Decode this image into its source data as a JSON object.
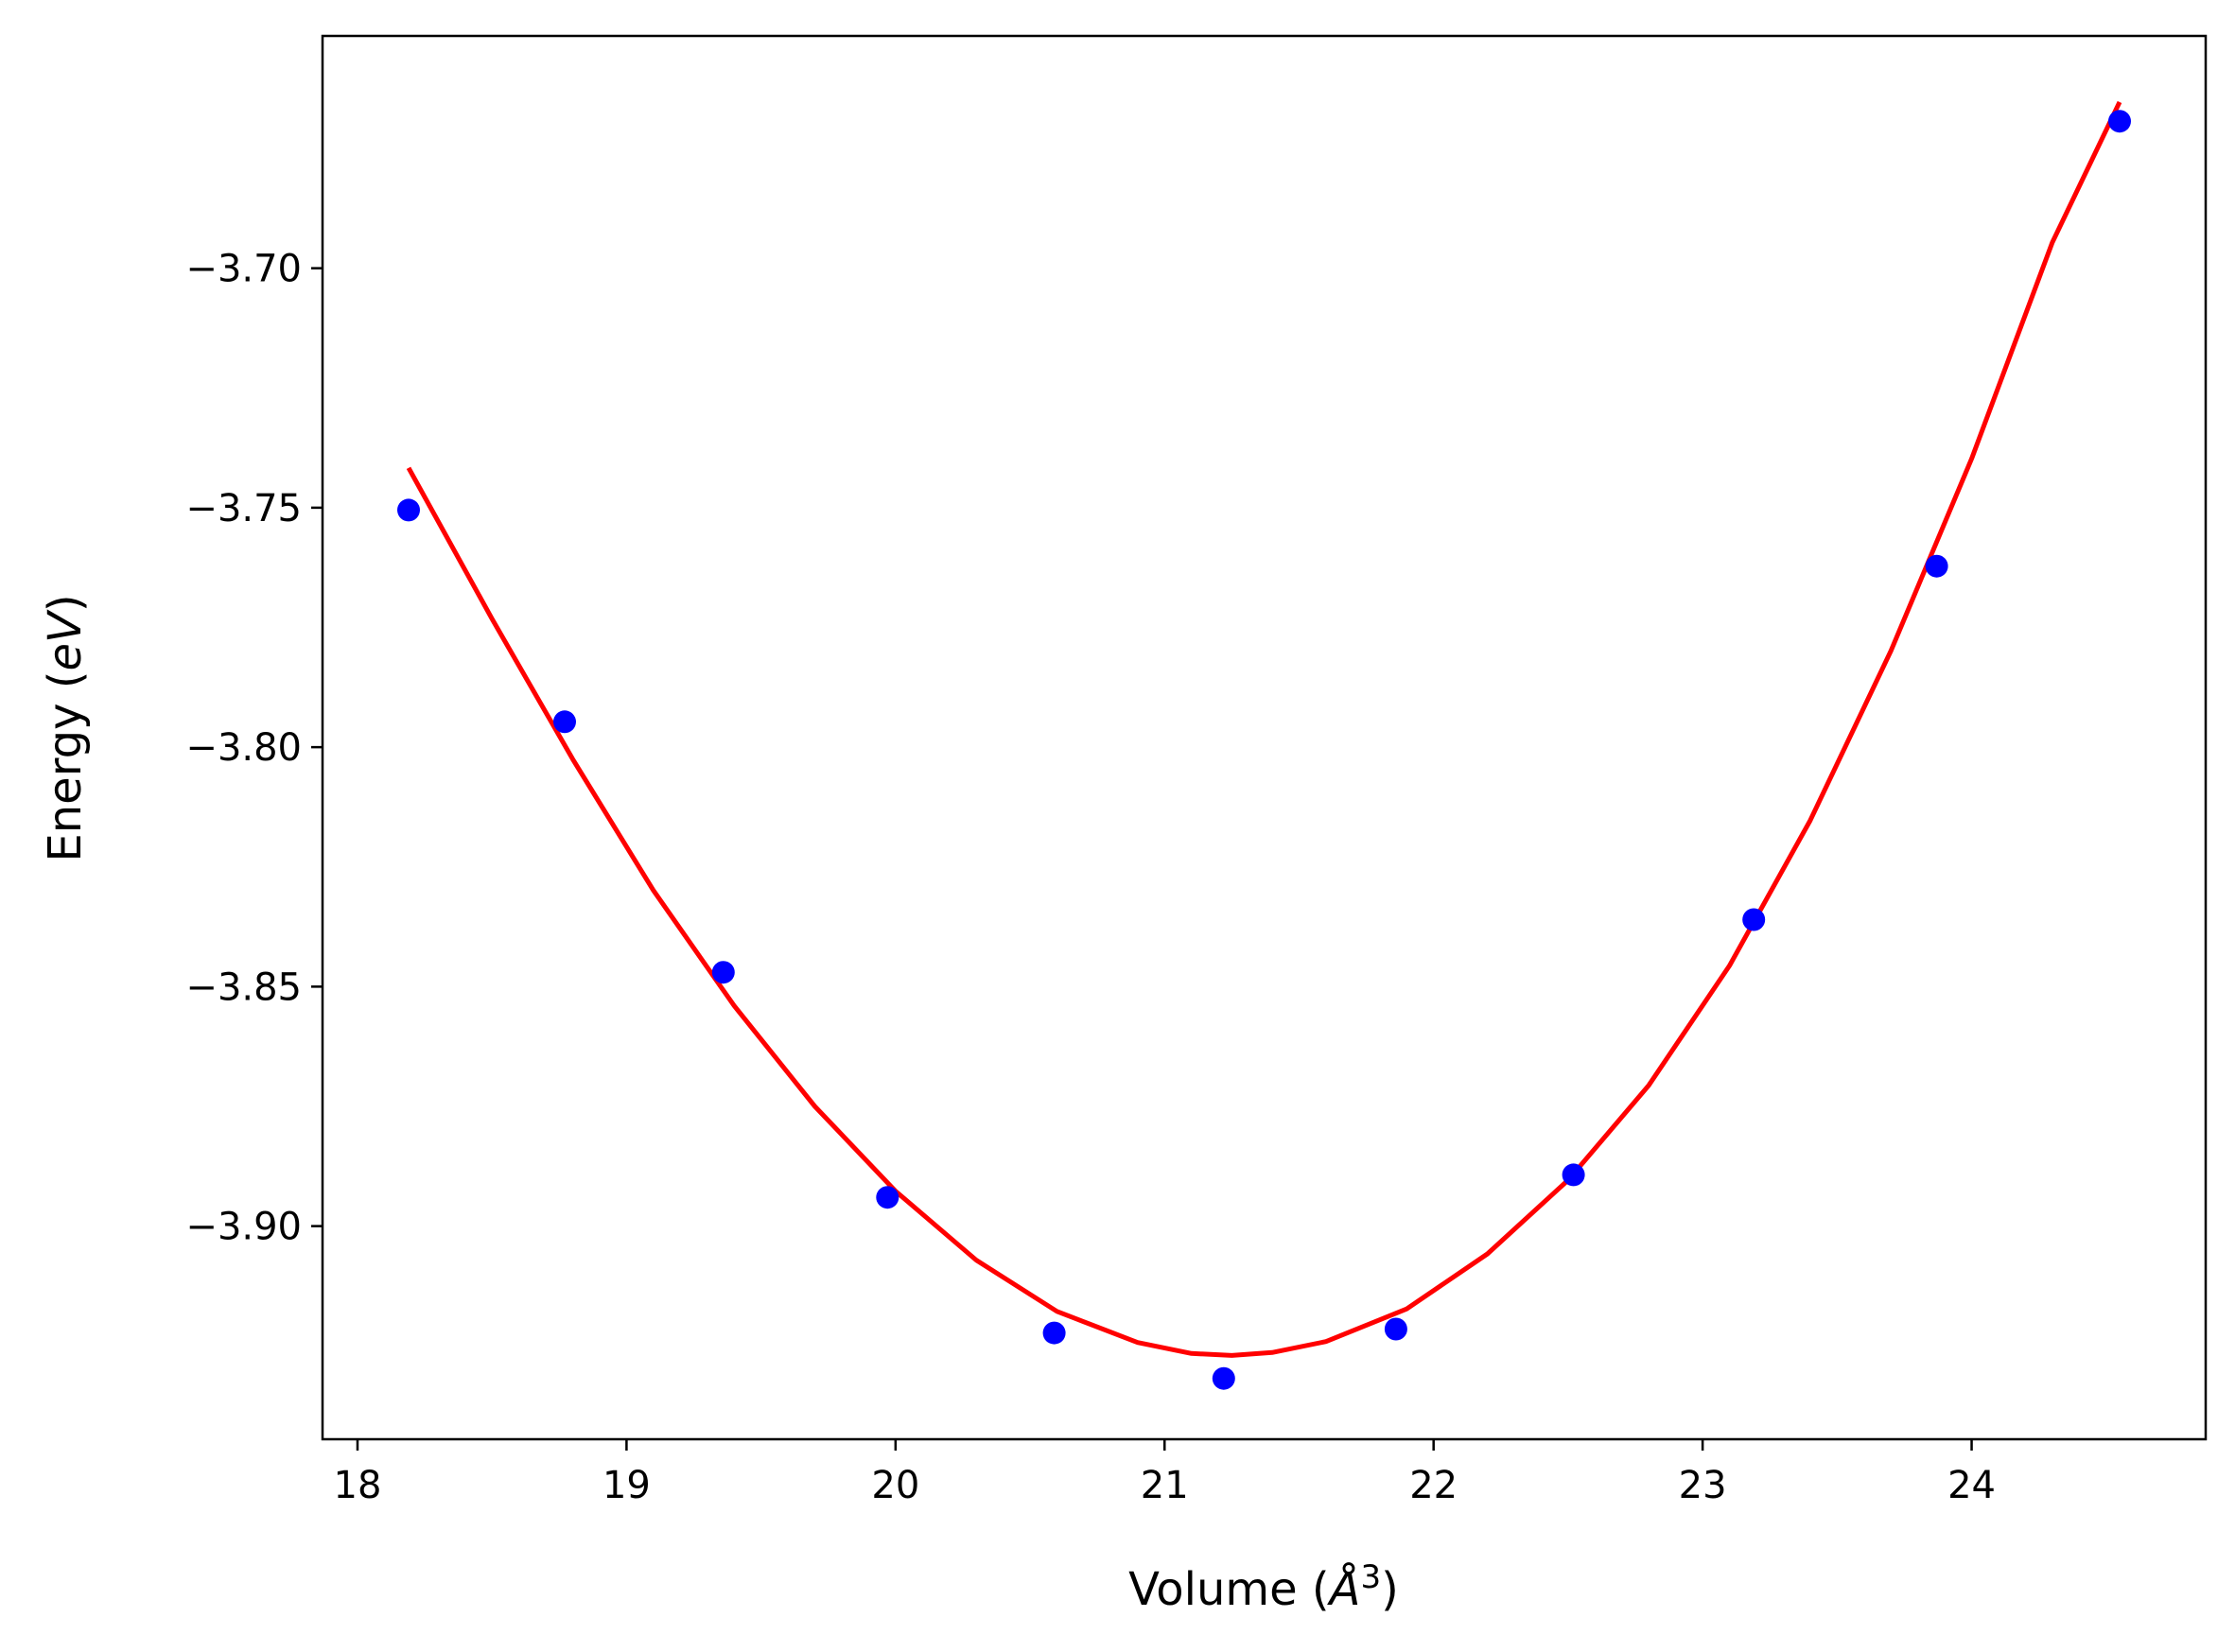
{
  "chart_data": {
    "type": "scatter",
    "xlabel": {
      "prefix": "Volume (",
      "unit": "Å",
      "exponent": "3",
      "suffix": ")"
    },
    "ylabel": {
      "prefix": "Energy (",
      "unit": "eV",
      "suffix": ")"
    },
    "xlim": [
      17.87,
      24.87
    ],
    "ylim": [
      -3.9445,
      -3.6515
    ],
    "xticks": [
      {
        "value": 18,
        "label": "18"
      },
      {
        "value": 19,
        "label": "19"
      },
      {
        "value": 20,
        "label": "20"
      },
      {
        "value": 21,
        "label": "21"
      },
      {
        "value": 22,
        "label": "22"
      },
      {
        "value": 23,
        "label": "23"
      },
      {
        "value": 24,
        "label": "24"
      }
    ],
    "yticks": [
      {
        "value": -3.7,
        "label": "−3.70"
      },
      {
        "value": -3.75,
        "label": "−3.75"
      },
      {
        "value": -3.8,
        "label": "−3.80"
      },
      {
        "value": -3.85,
        "label": "−3.85"
      },
      {
        "value": -3.9,
        "label": "−3.90"
      }
    ],
    "grid": false,
    "legend": "none",
    "series": [
      {
        "kind": "scatter",
        "color": "#0000ff",
        "points": [
          [
            18.19,
            -3.7505
          ],
          [
            18.77,
            -3.7947
          ],
          [
            19.36,
            -3.847
          ],
          [
            19.97,
            -3.894
          ],
          [
            20.59,
            -3.9223
          ],
          [
            21.22,
            -3.9318
          ],
          [
            21.86,
            -3.9215
          ],
          [
            22.52,
            -3.8893
          ],
          [
            23.19,
            -3.836
          ],
          [
            23.87,
            -3.7622
          ],
          [
            24.55,
            -3.6693
          ]
        ]
      },
      {
        "kind": "fit-line",
        "color": "#ff0000",
        "points": [
          [
            18.19,
            -3.7417
          ],
          [
            18.5,
            -3.7732
          ],
          [
            18.8,
            -3.8025
          ],
          [
            19.1,
            -3.8299
          ],
          [
            19.4,
            -3.854
          ],
          [
            19.7,
            -3.875
          ],
          [
            20.0,
            -3.8927
          ],
          [
            20.3,
            -3.9071
          ],
          [
            20.6,
            -3.9178
          ],
          [
            20.9,
            -3.9243
          ],
          [
            21.1,
            -3.9266
          ],
          [
            21.25,
            -3.927
          ],
          [
            21.4,
            -3.9264
          ],
          [
            21.6,
            -3.9241
          ],
          [
            21.9,
            -3.9173
          ],
          [
            22.2,
            -3.9058
          ],
          [
            22.5,
            -3.8904
          ],
          [
            22.8,
            -3.8706
          ],
          [
            23.1,
            -3.8456
          ],
          [
            23.4,
            -3.8153
          ],
          [
            23.7,
            -3.7799
          ],
          [
            24.0,
            -3.7398
          ],
          [
            24.3,
            -3.6946
          ],
          [
            24.55,
            -3.6653
          ]
        ]
      }
    ]
  }
}
